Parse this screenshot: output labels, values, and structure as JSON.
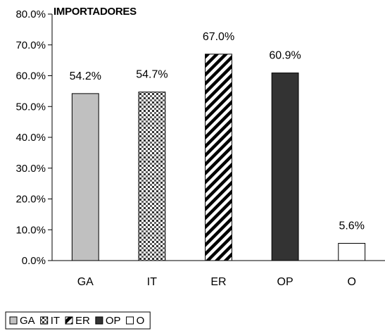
{
  "chart_data": {
    "type": "bar",
    "title": "IMPORTADORES",
    "categories": [
      "GA",
      "IT",
      "ER",
      "OP",
      "O"
    ],
    "values": [
      54.2,
      54.7,
      67.0,
      60.9,
      5.6
    ],
    "value_labels": [
      "54.2%",
      "54.7%",
      "67.0%",
      "60.9%",
      "5.6%"
    ],
    "ylim": [
      0,
      80
    ],
    "yticks": [
      0,
      10,
      20,
      30,
      40,
      50,
      60,
      70,
      80
    ],
    "ytick_labels": [
      "0.0%",
      "10.0%",
      "20.0%",
      "30.0%",
      "40.0%",
      "50.0%",
      "60.0%",
      "70.0%",
      "80.0%"
    ],
    "grid": false,
    "legend": {
      "placement": "bottom-left",
      "entries": [
        "GA",
        "IT",
        "ER",
        "OP",
        "O"
      ]
    },
    "bar_styles": [
      {
        "fill": "#c0c0c0",
        "pattern": "solid"
      },
      {
        "fill": "#ffffff",
        "pattern": "dots"
      },
      {
        "fill": "#ffffff",
        "pattern": "diagonal-stripes"
      },
      {
        "fill": "#333333",
        "pattern": "solid"
      },
      {
        "fill": "#ffffff",
        "pattern": "solid"
      }
    ]
  }
}
